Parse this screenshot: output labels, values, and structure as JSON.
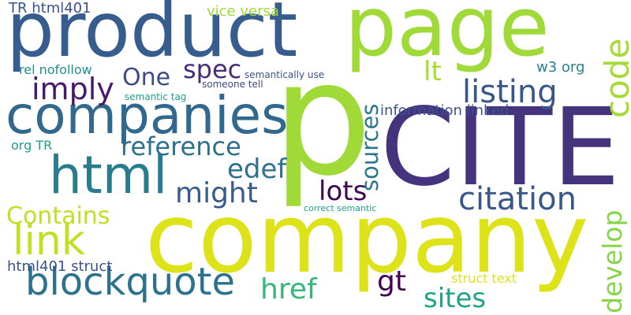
{
  "words": {
    "p": {
      "text": "p",
      "color": "#a0da39"
    },
    "cite": {
      "text": "CITE",
      "color": "#46337e"
    },
    "company": {
      "text": "company",
      "color": "#dde318"
    },
    "page": {
      "text": "page",
      "color": "#a0da39"
    },
    "product": {
      "text": "product",
      "color": "#365d8d"
    },
    "companies": {
      "text": "companies",
      "color": "#31688e"
    },
    "html": {
      "text": "html",
      "color": "#287c8e"
    },
    "blockquote": {
      "text": "blockquote",
      "color": "#2c728e"
    },
    "link": {
      "text": "link",
      "color": "#c2df23"
    },
    "code": {
      "text": "code",
      "color": "#a5db36"
    },
    "develop": {
      "text": "develop",
      "color": "#86d549"
    },
    "sources": {
      "text": "sources",
      "color": "#2a788e"
    },
    "listing": {
      "text": "listing",
      "color": "#39568c"
    },
    "citation": {
      "text": "citation",
      "color": "#38588c"
    },
    "contains": {
      "text": "Contains",
      "color": "#c0df25"
    },
    "reference": {
      "text": "reference",
      "color": "#2d708e"
    },
    "imply": {
      "text": "imply",
      "color": "#48186a"
    },
    "one": {
      "text": "One",
      "color": "#3e4989"
    },
    "spec": {
      "text": "spec",
      "color": "#472c7a"
    },
    "edef": {
      "text": "edef",
      "color": "#2d718e"
    },
    "might": {
      "text": "might",
      "color": "#375b8d"
    },
    "lots": {
      "text": "lots",
      "color": "#3e0751"
    },
    "href": {
      "text": "href",
      "color": "#35b779"
    },
    "gt": {
      "text": "gt",
      "color": "#440154"
    },
    "sites": {
      "text": "sites",
      "color": "#20a386"
    },
    "lt": {
      "text": "lt",
      "color": "#a8db34"
    },
    "information_linked": {
      "text": "information linked",
      "color": "#3b528b"
    },
    "w3_org": {
      "text": "w3 org",
      "color": "#26818e"
    },
    "tr_html401": {
      "text": "TR html401",
      "color": "#3b528b"
    },
    "vice_versa": {
      "text": "vice versa",
      "color": "#a0da39"
    },
    "rel_nofollow": {
      "text": "rel nofollow",
      "color": "#218f8d"
    },
    "org_tr": {
      "text": "org TR",
      "color": "#1f9e89"
    },
    "html401_struct": {
      "text": "html401 struct",
      "color": "#3b528b"
    },
    "struct_text": {
      "text": "struct text",
      "color": "#dde318"
    },
    "semantically_use": {
      "text": "semantically use",
      "color": "#3b528b"
    },
    "someone_tell": {
      "text": "someone tell",
      "color": "#3e4989"
    },
    "semantic_tag": {
      "text": "semantic tag",
      "color": "#1f9e89"
    },
    "correct_semantic": {
      "text": "correct semantic",
      "color": "#1fa187"
    }
  }
}
